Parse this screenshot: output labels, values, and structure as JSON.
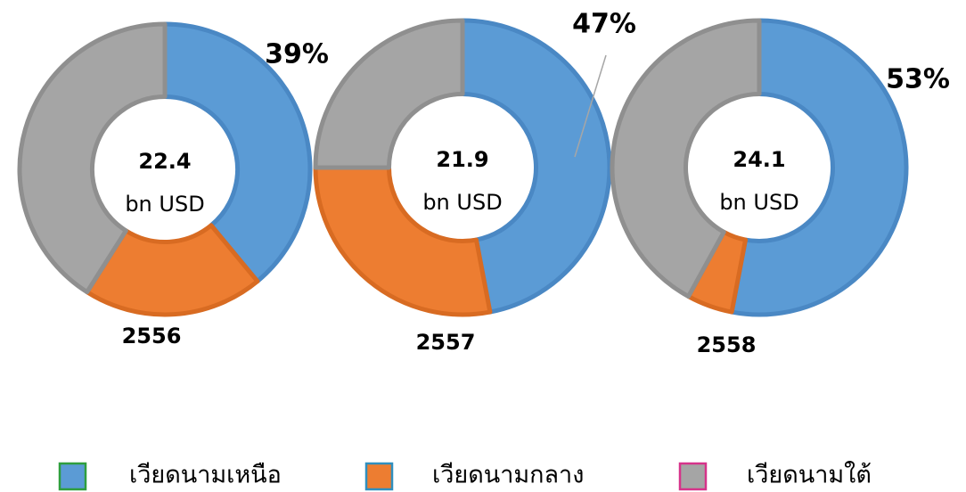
{
  "legend": [
    {
      "name": "เวียดนามเหนือ",
      "color": "#5b9bd5",
      "border": "#2e9e3e"
    },
    {
      "name": "เวียดนามกลาง",
      "color": "#ed7d31",
      "border": "#2f8fbf"
    },
    {
      "name": "เวียดนามใต้",
      "color": "#a5a5a5",
      "border": "#d6338a"
    }
  ],
  "chart_data": [
    {
      "type": "donut",
      "label": "2556",
      "center_value": "22.4",
      "center_unit": "bn USD",
      "values": [
        39,
        20,
        41
      ],
      "value_labels": [
        "39%",
        null,
        null
      ]
    },
    {
      "type": "donut",
      "label": "2557",
      "center_value": "21.9",
      "center_unit": "bn USD",
      "values": [
        47,
        28,
        25
      ],
      "value_labels": [
        "47%",
        null,
        null
      ]
    },
    {
      "type": "donut",
      "label": "2558",
      "center_value": "24.1",
      "center_unit": "bn USD",
      "values": [
        53,
        5,
        42
      ],
      "value_labels": [
        "53%",
        null,
        null
      ]
    }
  ]
}
